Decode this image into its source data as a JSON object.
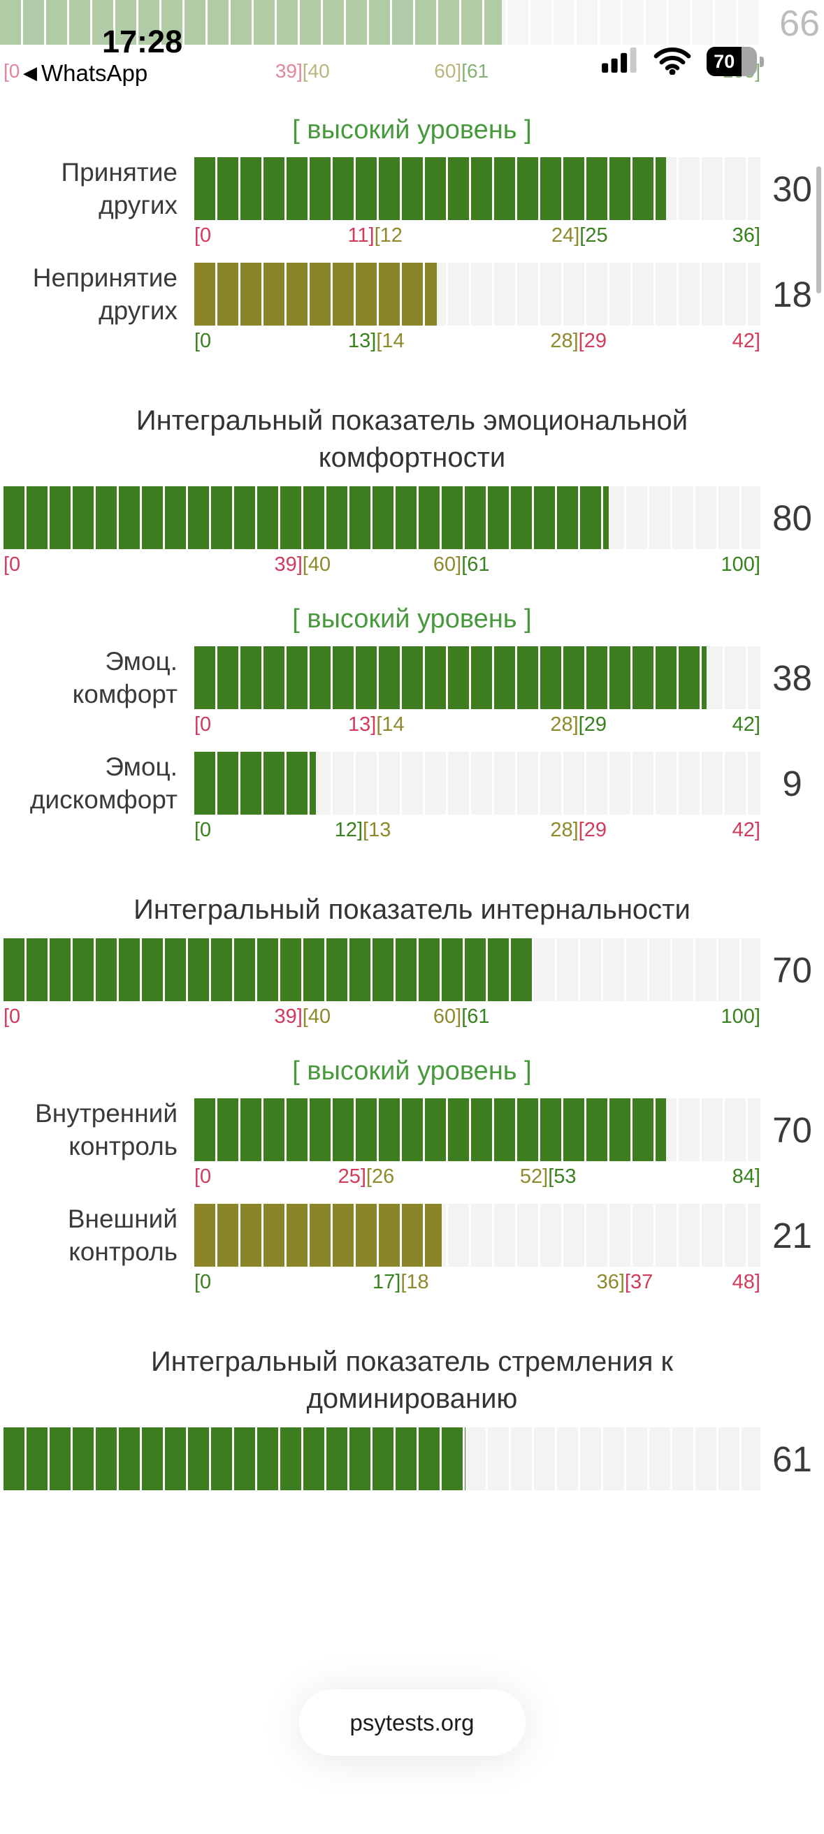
{
  "status_bar": {
    "time": "17:28",
    "back_app": "WhatsApp",
    "battery_percent": "70",
    "signal_strength": "3-of-4-bars"
  },
  "footer": {
    "site": "psytests.org"
  },
  "level_caption": "[ высокий уровень ]",
  "colors": {
    "bar_green": "#3d7d20",
    "bar_olive": "#8a8529",
    "bar_background": "#f3f3f1",
    "tick_red": "#d23b5b",
    "tick_olive": "#8e8a2c",
    "tick_green": "#38811f",
    "level_green": "#479a3c"
  },
  "top_scale": {
    "value": 66,
    "max": 100,
    "color": "faded-green",
    "ticks": [
      {
        "pos": "start",
        "parts": [
          {
            "text": "[0",
            "color": "red"
          }
        ]
      },
      {
        "pos": 39.5,
        "parts": [
          {
            "text": "39]",
            "color": "red"
          },
          {
            "text": "[40",
            "color": "olive"
          }
        ]
      },
      {
        "pos": 60.5,
        "parts": [
          {
            "text": "60]",
            "color": "olive"
          },
          {
            "text": "[61",
            "color": "green"
          }
        ]
      },
      {
        "pos": "end",
        "parts": [
          {
            "text": "100]",
            "color": "green"
          }
        ]
      }
    ]
  },
  "blocks": [
    {
      "type": "level"
    },
    {
      "type": "scale",
      "label": "Принятие других",
      "value": 30,
      "max": 36,
      "color": "green",
      "ticks": [
        {
          "pos": "start",
          "parts": [
            {
              "text": "[0",
              "color": "red"
            }
          ]
        },
        {
          "pos": 31.94,
          "parts": [
            {
              "text": "11]",
              "color": "red"
            },
            {
              "text": "[12",
              "color": "olive"
            }
          ]
        },
        {
          "pos": 68.06,
          "parts": [
            {
              "text": "24]",
              "color": "olive"
            },
            {
              "text": "[25",
              "color": "green"
            }
          ]
        },
        {
          "pos": "end",
          "parts": [
            {
              "text": "36]",
              "color": "green"
            }
          ]
        }
      ]
    },
    {
      "type": "scale",
      "label": "Непринятие других",
      "value": 18,
      "max": 42,
      "color": "olive",
      "ticks": [
        {
          "pos": "start",
          "parts": [
            {
              "text": "[0",
              "color": "green"
            }
          ]
        },
        {
          "pos": 32.14,
          "parts": [
            {
              "text": "13]",
              "color": "green"
            },
            {
              "text": "[14",
              "color": "olive"
            }
          ]
        },
        {
          "pos": 67.86,
          "parts": [
            {
              "text": "28]",
              "color": "olive"
            },
            {
              "text": "[29",
              "color": "red"
            }
          ]
        },
        {
          "pos": "end",
          "parts": [
            {
              "text": "42]",
              "color": "red"
            }
          ]
        }
      ]
    },
    {
      "type": "title",
      "text": "Интегральный показатель эмоциональной комфортности"
    },
    {
      "type": "scale",
      "label": null,
      "value": 80,
      "max": 100,
      "color": "green",
      "ticks": [
        {
          "pos": "start",
          "parts": [
            {
              "text": "[0",
              "color": "red"
            }
          ]
        },
        {
          "pos": 39.5,
          "parts": [
            {
              "text": "39]",
              "color": "red"
            },
            {
              "text": "[40",
              "color": "olive"
            }
          ]
        },
        {
          "pos": 60.5,
          "parts": [
            {
              "text": "60]",
              "color": "olive"
            },
            {
              "text": "[61",
              "color": "green"
            }
          ]
        },
        {
          "pos": "end",
          "parts": [
            {
              "text": "100]",
              "color": "green"
            }
          ]
        }
      ]
    },
    {
      "type": "level"
    },
    {
      "type": "scale",
      "label": "Эмоц. комфорт",
      "value": 38,
      "max": 42,
      "color": "green",
      "ticks": [
        {
          "pos": "start",
          "parts": [
            {
              "text": "[0",
              "color": "red"
            }
          ]
        },
        {
          "pos": 32.14,
          "parts": [
            {
              "text": "13]",
              "color": "red"
            },
            {
              "text": "[14",
              "color": "olive"
            }
          ]
        },
        {
          "pos": 67.86,
          "parts": [
            {
              "text": "28]",
              "color": "olive"
            },
            {
              "text": "[29",
              "color": "green"
            }
          ]
        },
        {
          "pos": "end",
          "parts": [
            {
              "text": "42]",
              "color": "green"
            }
          ]
        }
      ]
    },
    {
      "type": "scale",
      "label": "Эмоц. дискомфорт",
      "value": 9,
      "max": 42,
      "color": "green",
      "ticks": [
        {
          "pos": "start",
          "parts": [
            {
              "text": "[0",
              "color": "green"
            }
          ]
        },
        {
          "pos": 29.76,
          "parts": [
            {
              "text": "12]",
              "color": "green"
            },
            {
              "text": "[13",
              "color": "olive"
            }
          ]
        },
        {
          "pos": 67.86,
          "parts": [
            {
              "text": "28]",
              "color": "olive"
            },
            {
              "text": "[29",
              "color": "red"
            }
          ]
        },
        {
          "pos": "end",
          "parts": [
            {
              "text": "42]",
              "color": "red"
            }
          ]
        }
      ]
    },
    {
      "type": "title",
      "text": "Интегральный показатель интернальности"
    },
    {
      "type": "scale",
      "label": null,
      "value": 70,
      "max": 100,
      "color": "green",
      "ticks": [
        {
          "pos": "start",
          "parts": [
            {
              "text": "[0",
              "color": "red"
            }
          ]
        },
        {
          "pos": 39.5,
          "parts": [
            {
              "text": "39]",
              "color": "red"
            },
            {
              "text": "[40",
              "color": "olive"
            }
          ]
        },
        {
          "pos": 60.5,
          "parts": [
            {
              "text": "60]",
              "color": "olive"
            },
            {
              "text": "[61",
              "color": "green"
            }
          ]
        },
        {
          "pos": "end",
          "parts": [
            {
              "text": "100]",
              "color": "green"
            }
          ]
        }
      ]
    },
    {
      "type": "level"
    },
    {
      "type": "scale",
      "label": "Внутренний контроль",
      "value": 70,
      "max": 84,
      "color": "green",
      "ticks": [
        {
          "pos": "start",
          "parts": [
            {
              "text": "[0",
              "color": "red"
            }
          ]
        },
        {
          "pos": 30.36,
          "parts": [
            {
              "text": "25]",
              "color": "red"
            },
            {
              "text": "[26",
              "color": "olive"
            }
          ]
        },
        {
          "pos": 62.5,
          "parts": [
            {
              "text": "52]",
              "color": "olive"
            },
            {
              "text": "[53",
              "color": "green"
            }
          ]
        },
        {
          "pos": "end",
          "parts": [
            {
              "text": "84]",
              "color": "green"
            }
          ]
        }
      ]
    },
    {
      "type": "scale",
      "label": "Внешний контроль",
      "value": 21,
      "max": 48,
      "color": "olive",
      "ticks": [
        {
          "pos": "start",
          "parts": [
            {
              "text": "[0",
              "color": "green"
            }
          ]
        },
        {
          "pos": 36.46,
          "parts": [
            {
              "text": "17]",
              "color": "green"
            },
            {
              "text": "[18",
              "color": "olive"
            }
          ]
        },
        {
          "pos": 76.04,
          "parts": [
            {
              "text": "36]",
              "color": "olive"
            },
            {
              "text": "[37",
              "color": "red"
            }
          ]
        },
        {
          "pos": "end",
          "parts": [
            {
              "text": "48]",
              "color": "red"
            }
          ]
        }
      ]
    },
    {
      "type": "title",
      "text": "Интегральный показатель стремления к доминированию"
    },
    {
      "type": "scale",
      "label": null,
      "value": 61,
      "max": 100,
      "color": "green",
      "ticks": []
    }
  ]
}
